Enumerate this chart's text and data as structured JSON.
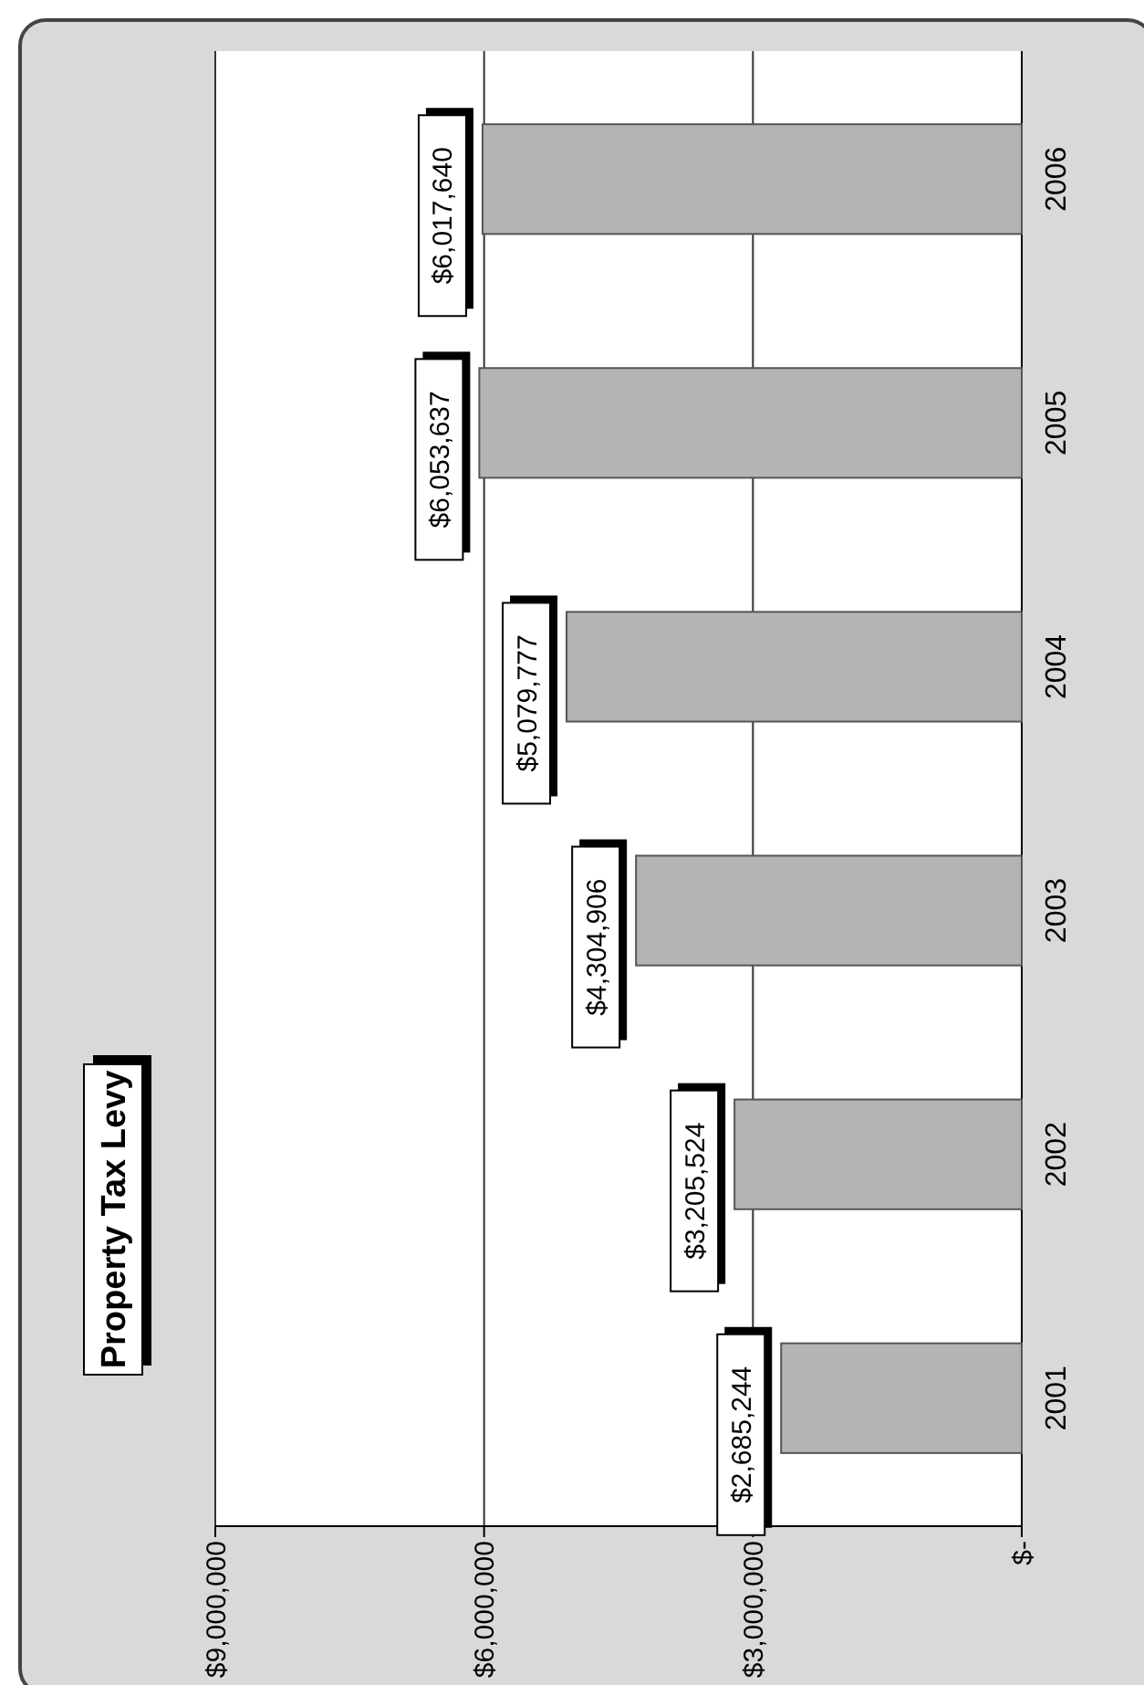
{
  "chart_data": {
    "type": "bar",
    "title": "Property Tax Levy",
    "orientation": "horizontal",
    "categories": [
      "2006",
      "2005",
      "2004",
      "2003",
      "2002",
      "2001"
    ],
    "values": [
      6017640,
      6053637,
      5079777,
      4304906,
      3205524,
      2685244
    ],
    "value_labels": [
      "$6,017,640",
      "$6,053,637",
      "$5,079,777",
      "$4,304,906",
      "$3,205,524",
      "$2,685,244"
    ],
    "color": "#b4b4b4",
    "xlim": [
      9000000,
      0
    ],
    "xticks": [
      {
        "value": 9000000,
        "label": "$9,000,000"
      },
      {
        "value": 6000000,
        "label": "$6,000,000"
      },
      {
        "value": 3000000,
        "label": "$3,000,000"
      },
      {
        "value": 0,
        "label": "$-"
      }
    ],
    "grid": "x"
  }
}
